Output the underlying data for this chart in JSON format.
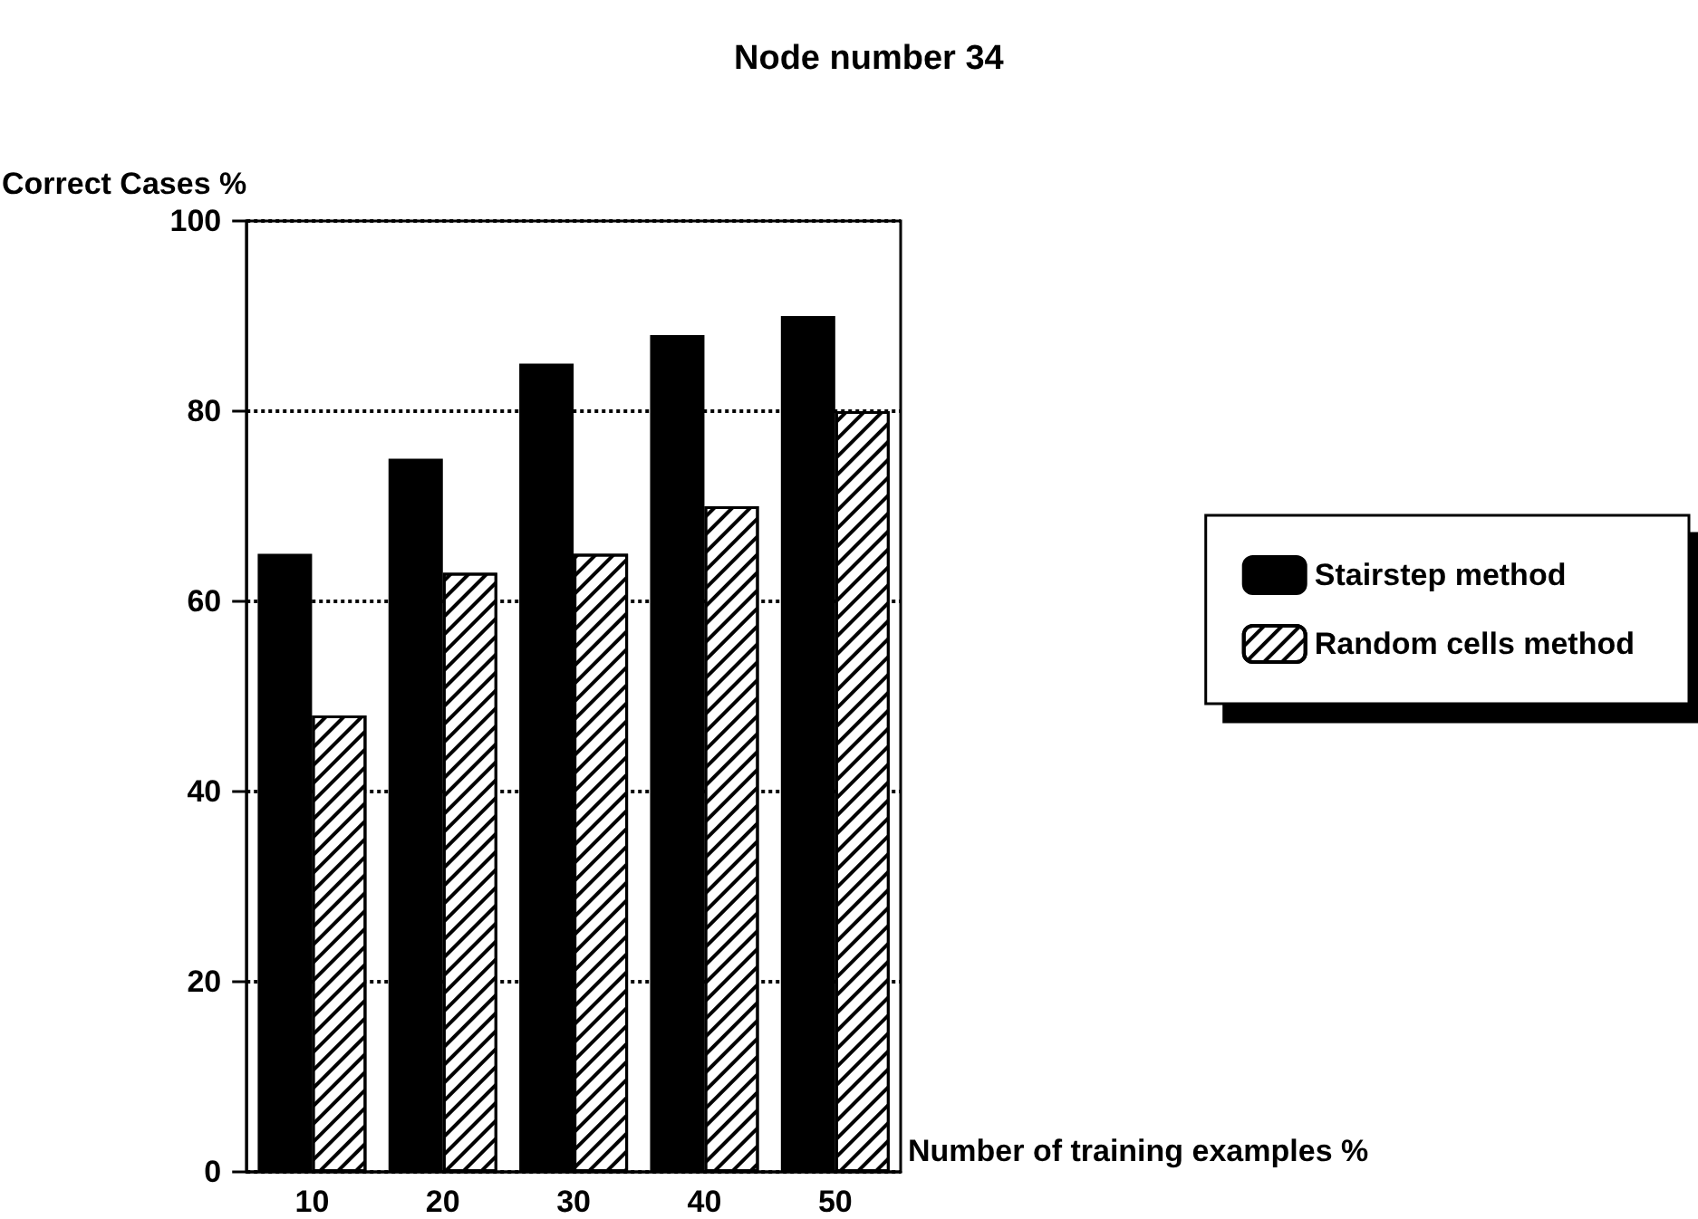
{
  "chart_data": {
    "type": "bar",
    "title": "Node number 34",
    "xlabel": "Number of training examples %",
    "ylabel": "Correct Cases %",
    "categories": [
      "10",
      "20",
      "30",
      "40",
      "50"
    ],
    "series": [
      {
        "name": "Stairstep method",
        "color": "#000000",
        "values": [
          65,
          75,
          85,
          88,
          90
        ]
      },
      {
        "name": "Random cells method",
        "color": "#ffffff",
        "values": [
          48,
          63,
          65,
          70,
          80
        ]
      }
    ],
    "ylim": [
      0,
      100
    ],
    "yticks": [
      0,
      20,
      40,
      60,
      80,
      100
    ],
    "grid": "y",
    "legend": "right"
  }
}
